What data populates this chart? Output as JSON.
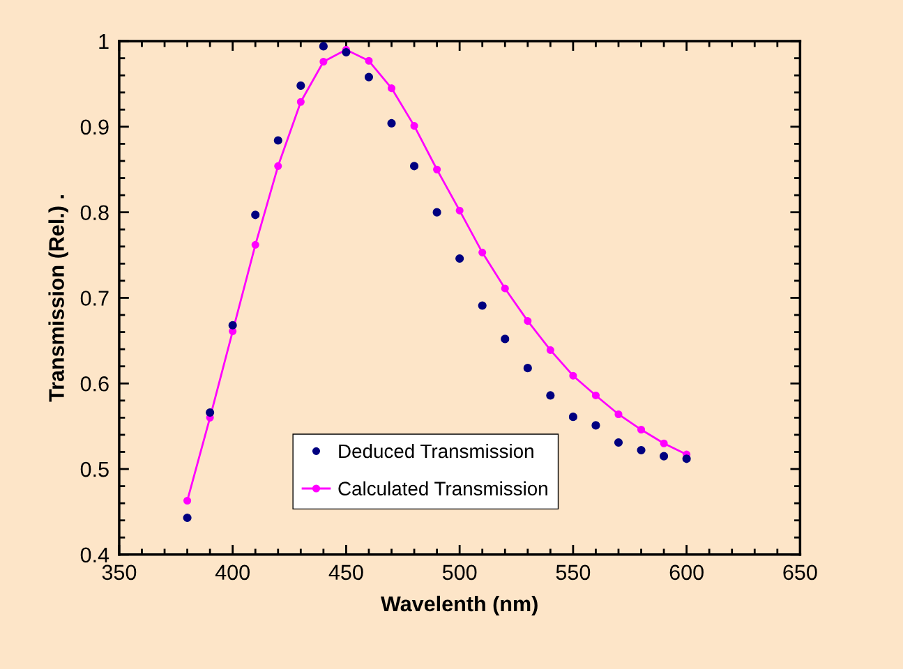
{
  "chart_data": {
    "type": "scatter",
    "xlabel": "Wavelenth (nm)",
    "ylabel": "Transmission (Rel.) .",
    "x": [
      380,
      390,
      400,
      410,
      420,
      430,
      440,
      450,
      460,
      470,
      480,
      490,
      500,
      510,
      520,
      530,
      540,
      550,
      560,
      570,
      580,
      590,
      600
    ],
    "series": [
      {
        "name": "Deduced Transmission",
        "color": "#000080",
        "values": [
          0.443,
          0.566,
          0.668,
          0.797,
          0.884,
          0.948,
          0.994,
          0.987,
          0.958,
          0.904,
          0.854,
          0.8,
          0.746,
          0.691,
          0.652,
          0.618,
          0.586,
          0.561,
          0.551,
          0.531,
          0.522,
          0.515,
          0.512
        ]
      },
      {
        "name": "Calculated Transmission",
        "type": "line",
        "color": "#ff00ff",
        "values": [
          0.463,
          0.56,
          0.661,
          0.762,
          0.854,
          0.929,
          0.976,
          0.99,
          0.977,
          0.945,
          0.901,
          0.85,
          0.802,
          0.753,
          0.711,
          0.673,
          0.639,
          0.609,
          0.586,
          0.564,
          0.546,
          0.53,
          0.517
        ]
      }
    ],
    "xlim": [
      350,
      650
    ],
    "xticks": [
      350,
      400,
      450,
      500,
      550,
      600,
      650
    ],
    "ylim": [
      0.4,
      1
    ],
    "yticks": [
      0.4,
      0.5,
      0.6,
      0.7,
      0.8,
      0.9,
      1
    ],
    "marker": "circle",
    "legend": "bottom",
    "grid": false
  }
}
